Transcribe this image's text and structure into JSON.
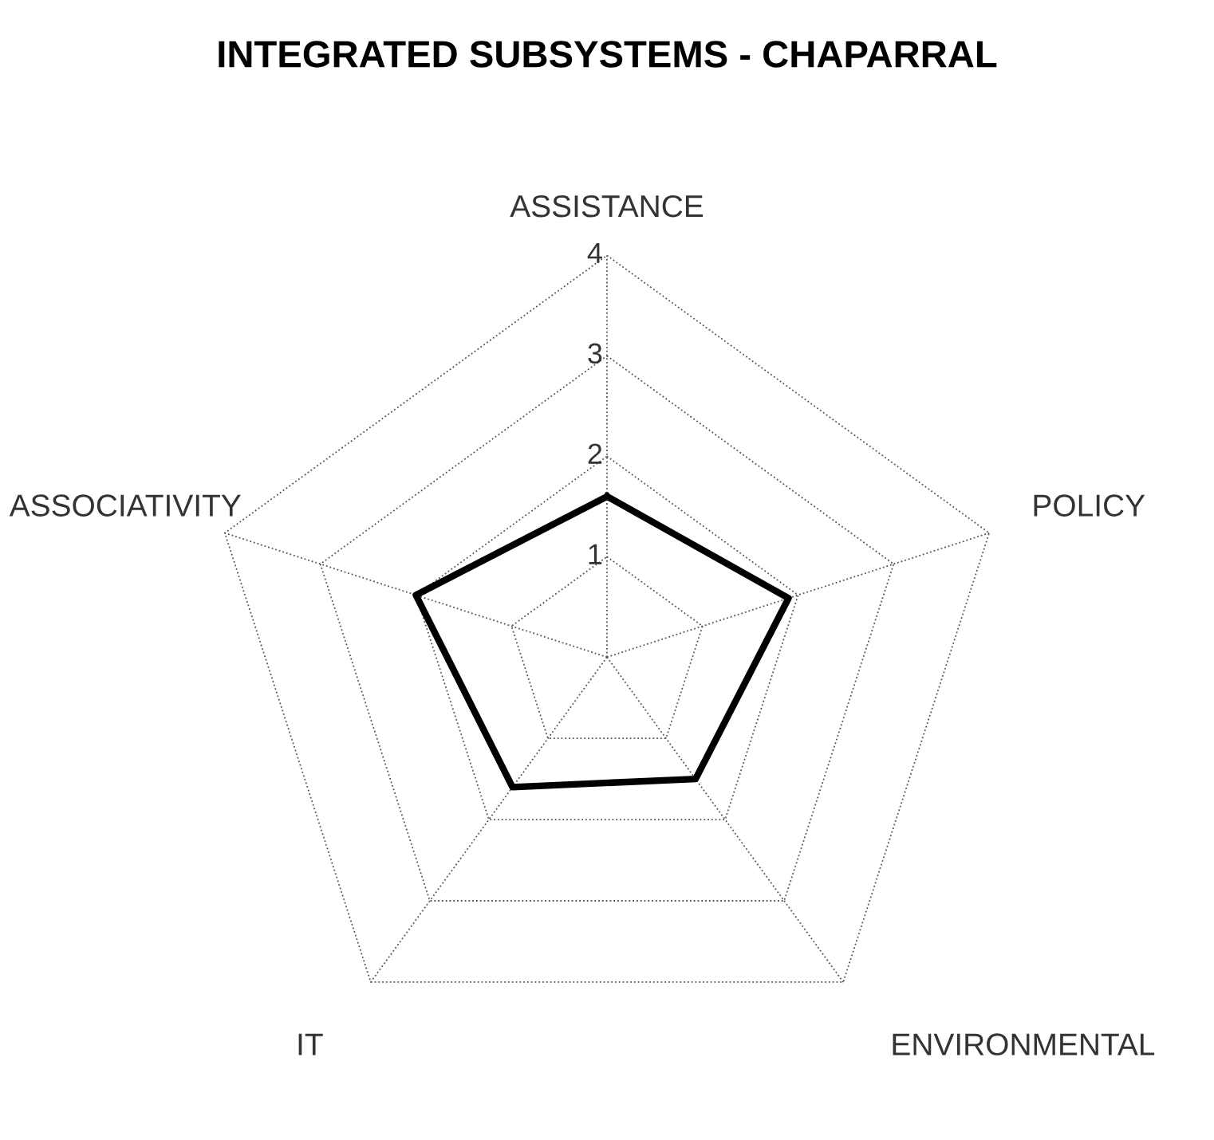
{
  "chart_data": {
    "type": "radar",
    "title": "INTEGRATED SUBSYSTEMS - CHAPARRAL",
    "categories": [
      "ASSISTANCE",
      "POLICY",
      "ENVIRONMENTAL",
      "IT",
      "ASSOCIATIVITY"
    ],
    "series": [
      {
        "color": "#000000",
        "values": [
          1.6,
          1.9,
          1.5,
          1.6,
          2.0
        ]
      }
    ],
    "ylim": [
      0,
      4
    ],
    "yticks": [
      1,
      2,
      3,
      4
    ],
    "grid": true,
    "marker": "none",
    "line_style": "solid"
  }
}
